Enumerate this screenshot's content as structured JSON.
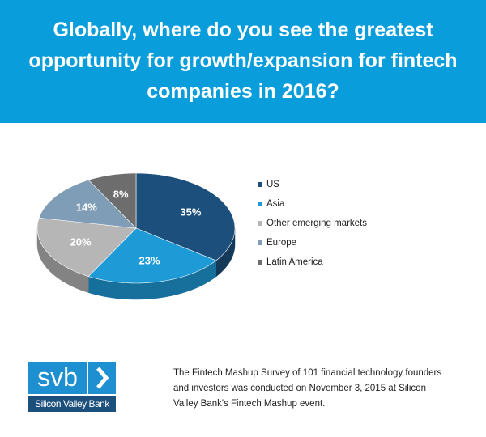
{
  "chart_data": {
    "type": "pie",
    "title": "Globally, where do you see the greatest opportunity for growth/expansion for fintech companies in 2016?",
    "categories": [
      "US",
      "Asia",
      "Other emerging markets",
      "Europe",
      "Latin America"
    ],
    "values": [
      35,
      23,
      20,
      14,
      8
    ],
    "value_labels": [
      "35%",
      "23%",
      "20%",
      "14%",
      "8%"
    ],
    "colors": [
      "#1c4f7c",
      "#1e9bd7",
      "#b6b6b6",
      "#7f9db6",
      "#6d6d6d"
    ]
  },
  "footer": {
    "logo": "svb",
    "bank_name": "Silicon Valley Bank",
    "note": "The Fintech Mashup Survey of 101 financial technology founders and investors was conducted on November 3, 2015 at Silicon Valley Bank's Fintech Mashup event."
  }
}
